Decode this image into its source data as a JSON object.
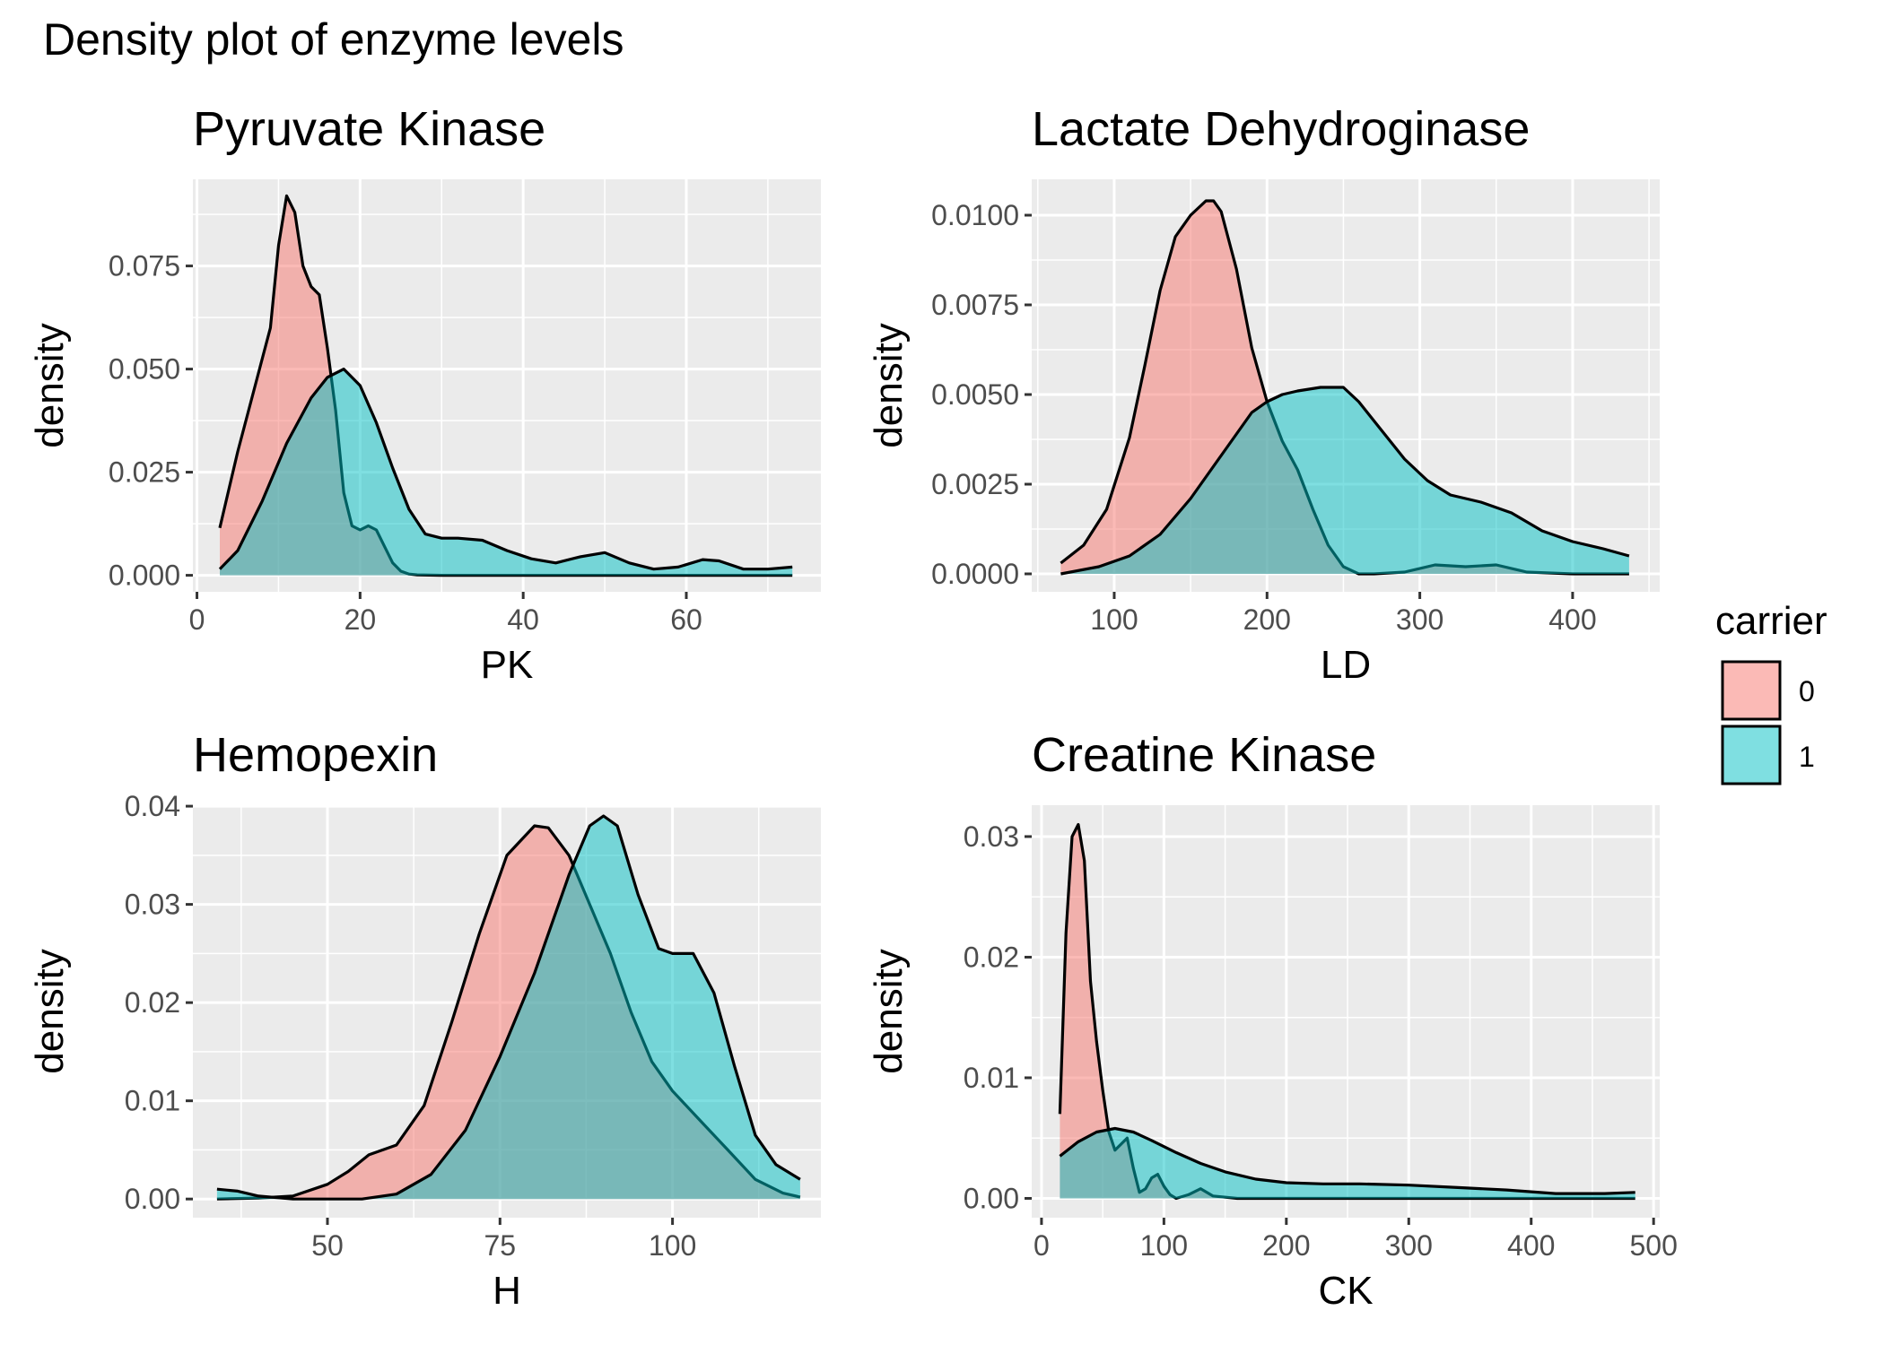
{
  "title": "Density plot of enzyme levels",
  "legend": {
    "title": "carrier",
    "entries": [
      {
        "label": "0",
        "color": "#f8766d"
      },
      {
        "label": "1",
        "color": "#00bfc4"
      }
    ]
  },
  "style": {
    "panel_background": "#ebebeb",
    "grid_color": "#ffffff",
    "fill_opacity": 0.5,
    "outline": "#000000"
  },
  "chart_data": [
    {
      "type": "area",
      "title": "Pyruvate Kinase",
      "xlabel": "PK",
      "ylabel": "density",
      "xlim": [
        -0.5,
        76.5
      ],
      "ylim": [
        -0.004,
        0.096
      ],
      "xticks": [
        {
          "v": 0,
          "l": "0"
        },
        {
          "v": 20,
          "l": "20"
        },
        {
          "v": 40,
          "l": "40"
        },
        {
          "v": 60,
          "l": "60"
        }
      ],
      "yticks": [
        {
          "v": 0,
          "l": "0.000"
        },
        {
          "v": 0.025,
          "l": "0.025"
        },
        {
          "v": 0.05,
          "l": "0.050"
        },
        {
          "v": 0.075,
          "l": "0.075"
        }
      ],
      "series": [
        {
          "name": "0",
          "x": [
            2.8,
            5,
            7,
            9,
            10,
            11,
            12,
            13,
            14,
            15,
            16,
            17,
            18,
            19,
            20,
            21,
            22,
            23,
            24,
            25,
            26,
            27,
            30,
            40,
            50,
            60,
            73
          ],
          "y": [
            0.0115,
            0.03,
            0.045,
            0.06,
            0.08,
            0.092,
            0.088,
            0.075,
            0.07,
            0.068,
            0.055,
            0.04,
            0.02,
            0.012,
            0.011,
            0.012,
            0.011,
            0.007,
            0.003,
            0.001,
            0.0003,
            0.0001,
            0,
            0,
            0,
            0,
            0
          ]
        },
        {
          "name": "1",
          "x": [
            2.8,
            5,
            8,
            11,
            14,
            16,
            18,
            20,
            22,
            24,
            26,
            28,
            30,
            32,
            35,
            38,
            41,
            44,
            47,
            50,
            53,
            56,
            59,
            62,
            64,
            67,
            70,
            73
          ],
          "y": [
            0.0015,
            0.006,
            0.018,
            0.032,
            0.043,
            0.048,
            0.05,
            0.046,
            0.037,
            0.026,
            0.016,
            0.01,
            0.009,
            0.009,
            0.0085,
            0.006,
            0.004,
            0.003,
            0.0045,
            0.0055,
            0.003,
            0.0015,
            0.002,
            0.0038,
            0.0035,
            0.0015,
            0.0015,
            0.002
          ]
        }
      ]
    },
    {
      "type": "area",
      "title": "Lactate Dehydroginase",
      "xlabel": "LD",
      "ylabel": "density",
      "xlim": [
        46,
        457
      ],
      "ylim": [
        -0.0005,
        0.011
      ],
      "xticks": [
        {
          "v": 100,
          "l": "100"
        },
        {
          "v": 200,
          "l": "200"
        },
        {
          "v": 300,
          "l": "300"
        },
        {
          "v": 400,
          "l": "400"
        }
      ],
      "yticks": [
        {
          "v": 0,
          "l": "0.0000"
        },
        {
          "v": 0.0025,
          "l": "0.0025"
        },
        {
          "v": 0.005,
          "l": "0.0050"
        },
        {
          "v": 0.0075,
          "l": "0.0075"
        },
        {
          "v": 0.01,
          "l": "0.0100"
        }
      ],
      "series": [
        {
          "name": "0",
          "x": [
            65,
            80,
            95,
            110,
            120,
            130,
            140,
            150,
            160,
            165,
            170,
            180,
            190,
            200,
            210,
            220,
            230,
            240,
            250,
            260,
            270,
            290,
            310,
            330,
            350,
            370,
            400,
            437
          ],
          "y": [
            0.0003,
            0.0008,
            0.0018,
            0.0038,
            0.0058,
            0.0079,
            0.0094,
            0.01,
            0.0104,
            0.0104,
            0.0101,
            0.0085,
            0.0063,
            0.0048,
            0.0037,
            0.0029,
            0.0018,
            0.0008,
            0.0002,
            0,
            0,
            5e-05,
            0.00025,
            0.0002,
            0.00025,
            5e-05,
            0,
            0
          ]
        },
        {
          "name": "1",
          "x": [
            65,
            90,
            110,
            130,
            150,
            170,
            190,
            200,
            210,
            220,
            235,
            250,
            260,
            275,
            290,
            305,
            320,
            340,
            360,
            380,
            400,
            420,
            437
          ],
          "y": [
            0,
            0.0002,
            0.0005,
            0.0011,
            0.0021,
            0.0033,
            0.0045,
            0.0048,
            0.005,
            0.0051,
            0.0052,
            0.0052,
            0.0048,
            0.004,
            0.0032,
            0.0026,
            0.0022,
            0.002,
            0.0017,
            0.0012,
            0.0009,
            0.0007,
            0.0005
          ]
        }
      ]
    },
    {
      "type": "area",
      "title": "Hemopexin",
      "xlabel": "H",
      "ylabel": "density",
      "xlim": [
        30.5,
        121.5
      ],
      "ylim": [
        -0.0019,
        0.0401
      ],
      "xticks": [
        {
          "v": 50,
          "l": "50"
        },
        {
          "v": 75,
          "l": "75"
        },
        {
          "v": 100,
          "l": "100"
        }
      ],
      "yticks": [
        {
          "v": 0,
          "l": "0.00"
        },
        {
          "v": 0.01,
          "l": "0.01"
        },
        {
          "v": 0.02,
          "l": "0.02"
        },
        {
          "v": 0.03,
          "l": "0.03"
        },
        {
          "v": 0.04,
          "l": "0.04"
        }
      ],
      "series": [
        {
          "name": "0",
          "x": [
            34,
            40,
            45,
            50,
            53,
            56,
            60,
            64,
            68,
            72,
            76,
            80,
            82,
            85,
            88,
            91,
            94,
            97,
            100,
            104,
            108,
            112,
            116,
            118.5
          ],
          "y": [
            0,
            0.0001,
            0.0003,
            0.0015,
            0.0028,
            0.0045,
            0.0055,
            0.0095,
            0.018,
            0.027,
            0.035,
            0.038,
            0.0378,
            0.035,
            0.03,
            0.025,
            0.019,
            0.014,
            0.011,
            0.008,
            0.005,
            0.002,
            0.0006,
            0.0002
          ]
        },
        {
          "name": "1",
          "x": [
            34,
            37,
            40,
            45,
            50,
            55,
            60,
            65,
            70,
            75,
            80,
            85,
            88,
            90,
            92,
            95,
            98,
            100,
            103,
            106,
            109,
            112,
            115,
            118.5
          ],
          "y": [
            0.001,
            0.0008,
            0.0003,
            0,
            0,
            0,
            0.0005,
            0.0025,
            0.007,
            0.0145,
            0.023,
            0.033,
            0.038,
            0.039,
            0.038,
            0.031,
            0.0255,
            0.025,
            0.025,
            0.021,
            0.0135,
            0.0065,
            0.0035,
            0.002
          ]
        }
      ]
    },
    {
      "type": "area",
      "title": "Creatine Kinase",
      "xlabel": "CK",
      "ylabel": "density",
      "xlim": [
        -8,
        505
      ],
      "ylim": [
        -0.0016,
        0.0326
      ],
      "xticks": [
        {
          "v": 0,
          "l": "0"
        },
        {
          "v": 100,
          "l": "100"
        },
        {
          "v": 200,
          "l": "200"
        },
        {
          "v": 300,
          "l": "300"
        },
        {
          "v": 400,
          "l": "400"
        },
        {
          "v": 500,
          "l": "500"
        }
      ],
      "yticks": [
        {
          "v": 0,
          "l": "0.00"
        },
        {
          "v": 0.01,
          "l": "0.01"
        },
        {
          "v": 0.02,
          "l": "0.02"
        },
        {
          "v": 0.03,
          "l": "0.03"
        }
      ],
      "series": [
        {
          "name": "0",
          "x": [
            15,
            20,
            25,
            30,
            35,
            40,
            45,
            50,
            55,
            60,
            65,
            70,
            75,
            80,
            85,
            90,
            95,
            100,
            105,
            110,
            120,
            130,
            140,
            160,
            200,
            300,
            400,
            485
          ],
          "y": [
            0.007,
            0.022,
            0.03,
            0.031,
            0.028,
            0.018,
            0.013,
            0.009,
            0.0055,
            0.004,
            0.0045,
            0.005,
            0.0025,
            0.0005,
            0.0008,
            0.0017,
            0.002,
            0.001,
            0.0003,
            0,
            0.0003,
            0.0008,
            0.0002,
            0,
            0,
            0,
            0,
            0
          ]
        },
        {
          "name": "1",
          "x": [
            15,
            30,
            45,
            60,
            75,
            90,
            110,
            130,
            150,
            175,
            200,
            230,
            260,
            300,
            340,
            380,
            420,
            460,
            485
          ],
          "y": [
            0.0035,
            0.0047,
            0.0055,
            0.0058,
            0.0055,
            0.0048,
            0.0038,
            0.0029,
            0.0022,
            0.0016,
            0.0013,
            0.0012,
            0.0012,
            0.0011,
            0.0009,
            0.0007,
            0.0004,
            0.0004,
            0.0005
          ]
        }
      ]
    }
  ]
}
